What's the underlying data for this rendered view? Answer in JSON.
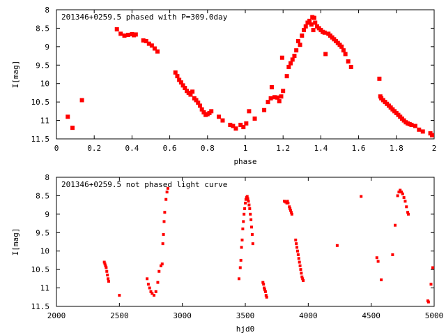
{
  "colors": {
    "points": "#ff0000",
    "axes": "#000000",
    "background": "#ffffff"
  },
  "chart_data": [
    {
      "type": "scatter",
      "title": "201346+0259.5 phased with P=309.0day",
      "xlabel": "phase",
      "ylabel": "I[mag]",
      "xlim": [
        0,
        2
      ],
      "ylim": [
        11.5,
        8
      ],
      "y_inverted": true,
      "grid": false,
      "legend": "none",
      "marker": "filled square (large)",
      "xticks": [
        0,
        0.2,
        0.4,
        0.6,
        0.8,
        1,
        1.2,
        1.4,
        1.6,
        1.8,
        2
      ],
      "xtick_labels": [
        "0",
        "0.2",
        "0.4",
        "0.6",
        "0.8",
        "1",
        "1.2",
        "1.4",
        "1.6",
        "1.8",
        "2"
      ],
      "yticks": [
        8,
        8.5,
        9,
        9.5,
        10,
        10.5,
        11,
        11.5
      ],
      "ytick_labels": [
        "8",
        "8.5",
        "9",
        "9.5",
        "10",
        "10.5",
        "11",
        "11.5"
      ],
      "points": [
        [
          0.06,
          10.9
        ],
        [
          0.085,
          11.2
        ],
        [
          0.135,
          10.45
        ],
        [
          0.32,
          8.53
        ],
        [
          0.34,
          8.65
        ],
        [
          0.36,
          8.7
        ],
        [
          0.38,
          8.68
        ],
        [
          0.4,
          8.66
        ],
        [
          0.41,
          8.69
        ],
        [
          0.42,
          8.67
        ],
        [
          0.46,
          8.83
        ],
        [
          0.475,
          8.85
        ],
        [
          0.49,
          8.92
        ],
        [
          0.505,
          8.97
        ],
        [
          0.52,
          9.05
        ],
        [
          0.535,
          9.13
        ],
        [
          0.63,
          9.7
        ],
        [
          0.64,
          9.8
        ],
        [
          0.65,
          9.9
        ],
        [
          0.66,
          9.97
        ],
        [
          0.67,
          10.05
        ],
        [
          0.68,
          10.12
        ],
        [
          0.69,
          10.2
        ],
        [
          0.7,
          10.25
        ],
        [
          0.71,
          10.3
        ],
        [
          0.72,
          10.22
        ],
        [
          0.73,
          10.4
        ],
        [
          0.74,
          10.45
        ],
        [
          0.75,
          10.52
        ],
        [
          0.76,
          10.6
        ],
        [
          0.77,
          10.7
        ],
        [
          0.78,
          10.78
        ],
        [
          0.79,
          10.85
        ],
        [
          0.8,
          10.83
        ],
        [
          0.81,
          10.8
        ],
        [
          0.82,
          10.75
        ],
        [
          0.86,
          10.9
        ],
        [
          0.88,
          11.0
        ],
        [
          0.92,
          11.12
        ],
        [
          0.935,
          11.15
        ],
        [
          0.95,
          11.22
        ],
        [
          0.975,
          11.12
        ],
        [
          0.99,
          11.18
        ],
        [
          1.005,
          11.08
        ],
        [
          1.02,
          10.75
        ],
        [
          1.05,
          10.95
        ],
        [
          1.1,
          10.72
        ],
        [
          1.12,
          10.5
        ],
        [
          1.135,
          10.4
        ],
        [
          1.14,
          10.1
        ],
        [
          1.155,
          10.37
        ],
        [
          1.17,
          10.38
        ],
        [
          1.18,
          10.48
        ],
        [
          1.19,
          10.35
        ],
        [
          1.195,
          9.3
        ],
        [
          1.2,
          10.2
        ],
        [
          1.22,
          9.8
        ],
        [
          1.23,
          9.55
        ],
        [
          1.24,
          9.45
        ],
        [
          1.25,
          9.35
        ],
        [
          1.26,
          9.25
        ],
        [
          1.27,
          9.1
        ],
        [
          1.28,
          8.85
        ],
        [
          1.29,
          8.95
        ],
        [
          1.3,
          8.7
        ],
        [
          1.31,
          8.55
        ],
        [
          1.32,
          8.45
        ],
        [
          1.33,
          8.35
        ],
        [
          1.34,
          8.3
        ],
        [
          1.35,
          8.4
        ],
        [
          1.355,
          8.2
        ],
        [
          1.36,
          8.55
        ],
        [
          1.365,
          8.22
        ],
        [
          1.37,
          8.35
        ],
        [
          1.38,
          8.45
        ],
        [
          1.39,
          8.5
        ],
        [
          1.4,
          8.55
        ],
        [
          1.41,
          8.6
        ],
        [
          1.42,
          8.62
        ],
        [
          1.425,
          9.2
        ],
        [
          1.44,
          8.65
        ],
        [
          1.45,
          8.7
        ],
        [
          1.46,
          8.75
        ],
        [
          1.47,
          8.8
        ],
        [
          1.48,
          8.85
        ],
        [
          1.49,
          8.9
        ],
        [
          1.5,
          8.95
        ],
        [
          1.51,
          9.0
        ],
        [
          1.52,
          9.1
        ],
        [
          1.53,
          9.2
        ],
        [
          1.545,
          9.4
        ],
        [
          1.56,
          9.55
        ],
        [
          1.71,
          9.87
        ],
        [
          1.715,
          10.35
        ],
        [
          1.72,
          10.4
        ],
        [
          1.73,
          10.45
        ],
        [
          1.74,
          10.5
        ],
        [
          1.75,
          10.55
        ],
        [
          1.76,
          10.6
        ],
        [
          1.77,
          10.65
        ],
        [
          1.78,
          10.7
        ],
        [
          1.79,
          10.75
        ],
        [
          1.8,
          10.8
        ],
        [
          1.81,
          10.85
        ],
        [
          1.82,
          10.9
        ],
        [
          1.83,
          10.95
        ],
        [
          1.84,
          11.0
        ],
        [
          1.85,
          11.05
        ],
        [
          1.86,
          11.08
        ],
        [
          1.87,
          11.1
        ],
        [
          1.88,
          11.12
        ],
        [
          1.9,
          11.15
        ],
        [
          1.92,
          11.25
        ],
        [
          1.94,
          11.3
        ],
        [
          1.98,
          11.35
        ],
        [
          1.995,
          11.4
        ]
      ]
    },
    {
      "type": "scatter",
      "title": "201346+0259.5 not phased light curve",
      "xlabel": "hjd0",
      "ylabel": "I[mag]",
      "xlim": [
        2000,
        5000
      ],
      "ylim": [
        11.5,
        8
      ],
      "y_inverted": true,
      "grid": false,
      "legend": "none",
      "marker": "filled square (small)",
      "xticks": [
        2000,
        2500,
        3000,
        3500,
        4000,
        4500,
        5000
      ],
      "xtick_labels": [
        "2000",
        "2500",
        "3000",
        "3500",
        "4000",
        "4500",
        "5000"
      ],
      "yticks": [
        8,
        8.5,
        9,
        9.5,
        10,
        10.5,
        11,
        11.5
      ],
      "ytick_labels": [
        "8",
        "8.5",
        "9",
        "9.5",
        "10",
        "10.5",
        "11",
        "11.5"
      ],
      "points": [
        [
          2380,
          10.3
        ],
        [
          2385,
          10.35
        ],
        [
          2390,
          10.4
        ],
        [
          2395,
          10.45
        ],
        [
          2400,
          10.55
        ],
        [
          2405,
          10.65
        ],
        [
          2410,
          10.75
        ],
        [
          2415,
          10.82
        ],
        [
          2500,
          11.2
        ],
        [
          2720,
          10.75
        ],
        [
          2730,
          10.9
        ],
        [
          2740,
          11.0
        ],
        [
          2750,
          11.1
        ],
        [
          2760,
          11.15
        ],
        [
          2775,
          11.2
        ],
        [
          2790,
          11.1
        ],
        [
          2805,
          10.85
        ],
        [
          2815,
          10.55
        ],
        [
          2830,
          10.4
        ],
        [
          2840,
          10.35
        ],
        [
          2845,
          9.8
        ],
        [
          2850,
          9.55
        ],
        [
          2855,
          9.2
        ],
        [
          2860,
          8.95
        ],
        [
          2870,
          8.6
        ],
        [
          2878,
          8.4
        ],
        [
          2885,
          8.3
        ],
        [
          3450,
          10.75
        ],
        [
          3460,
          10.45
        ],
        [
          3465,
          10.25
        ],
        [
          3470,
          9.9
        ],
        [
          3475,
          9.7
        ],
        [
          3480,
          9.4
        ],
        [
          3485,
          9.2
        ],
        [
          3490,
          9.0
        ],
        [
          3495,
          8.85
        ],
        [
          3500,
          8.7
        ],
        [
          3505,
          8.6
        ],
        [
          3510,
          8.55
        ],
        [
          3515,
          8.52
        ],
        [
          3520,
          8.58
        ],
        [
          3525,
          8.65
        ],
        [
          3530,
          8.75
        ],
        [
          3535,
          8.85
        ],
        [
          3540,
          9.0
        ],
        [
          3545,
          9.15
        ],
        [
          3550,
          9.35
        ],
        [
          3555,
          9.55
        ],
        [
          3560,
          9.8
        ],
        [
          3640,
          10.85
        ],
        [
          3645,
          10.9
        ],
        [
          3650,
          11.0
        ],
        [
          3655,
          11.05
        ],
        [
          3660,
          11.1
        ],
        [
          3665,
          11.2
        ],
        [
          3670,
          11.25
        ],
        [
          3810,
          8.65
        ],
        [
          3820,
          8.67
        ],
        [
          3830,
          8.7
        ],
        [
          3835,
          8.65
        ],
        [
          3840,
          8.7
        ],
        [
          3850,
          8.8
        ],
        [
          3855,
          8.85
        ],
        [
          3860,
          8.9
        ],
        [
          3865,
          8.95
        ],
        [
          3870,
          9.0
        ],
        [
          3900,
          9.7
        ],
        [
          3905,
          9.8
        ],
        [
          3910,
          9.9
        ],
        [
          3915,
          10.0
        ],
        [
          3920,
          10.1
        ],
        [
          3925,
          10.2
        ],
        [
          3930,
          10.3
        ],
        [
          3935,
          10.4
        ],
        [
          3940,
          10.5
        ],
        [
          3945,
          10.6
        ],
        [
          3950,
          10.7
        ],
        [
          3955,
          10.75
        ],
        [
          3960,
          10.8
        ],
        [
          4230,
          9.85
        ],
        [
          4420,
          8.52
        ],
        [
          4545,
          10.18
        ],
        [
          4555,
          10.28
        ],
        [
          4580,
          10.78
        ],
        [
          4670,
          10.1
        ],
        [
          4690,
          9.3
        ],
        [
          4710,
          8.5
        ],
        [
          4720,
          8.4
        ],
        [
          4730,
          8.35
        ],
        [
          4740,
          8.4
        ],
        [
          4750,
          8.45
        ],
        [
          4760,
          8.55
        ],
        [
          4770,
          8.65
        ],
        [
          4780,
          8.8
        ],
        [
          4790,
          8.95
        ],
        [
          4795,
          9.0
        ],
        [
          4950,
          11.35
        ],
        [
          4955,
          11.38
        ],
        [
          4975,
          10.9
        ],
        [
          4990,
          10.45
        ],
        [
          5000,
          10.45
        ]
      ]
    }
  ]
}
